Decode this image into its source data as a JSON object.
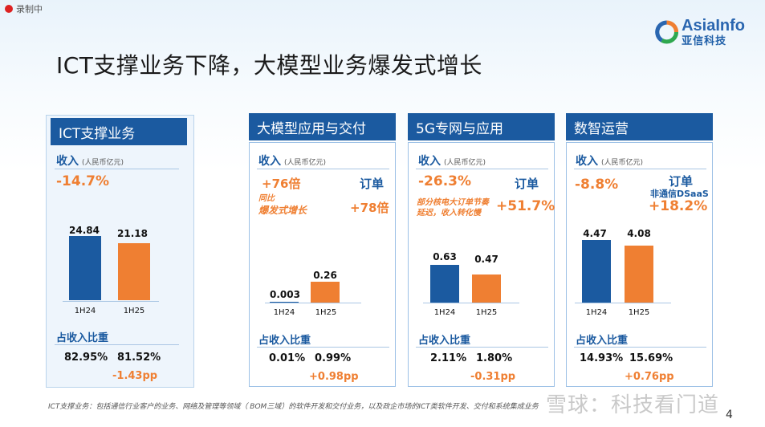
{
  "recording": "录制中",
  "logo": {
    "en": "AsiaInfo",
    "cn": "亚信科技"
  },
  "title": "ICT支撑业务下降，大模型业务爆发式增长",
  "rev_label": "收入",
  "unit": "(人民币亿元)",
  "share_label": "占收入比重",
  "order_label": "订单",
  "x_labels": [
    "1H24",
    "1H25"
  ],
  "panels": {
    "ict": {
      "header": "ICT支撑业务",
      "change": "-14.7%",
      "values": [
        "24.84",
        "21.18"
      ],
      "shares": [
        "82.95%",
        "81.52%"
      ],
      "pp": "-1.43pp"
    },
    "llm": {
      "header": "大模型应用与交付",
      "change": "+76倍",
      "note1": "同比",
      "note2": "爆发式增长",
      "order_change": "+78倍",
      "values": [
        "0.003",
        "0.26"
      ],
      "shares": [
        "0.01%",
        "0.99%"
      ],
      "pp": "+0.98pp"
    },
    "g5": {
      "header": "5G专网与应用",
      "change": "-26.3%",
      "note1": "部分核电大订单节奏",
      "note2": "延迟，收入转化慢",
      "order_change": "+51.7%",
      "values": [
        "0.63",
        "0.47"
      ],
      "shares": [
        "2.11%",
        "1.80%"
      ],
      "pp": "-0.31pp"
    },
    "ops": {
      "header": "数智运营",
      "change": "-8.8%",
      "order_sub": "非通信DSaaS",
      "order_change": "+18.2%",
      "values": [
        "4.47",
        "4.08"
      ],
      "shares": [
        "14.93%",
        "15.69%"
      ],
      "pp": "+0.76pp"
    }
  },
  "footnote": "ICT支撑业务：包括通信行业客户的业务、网络及管理等领域（ BOM三域）的软件开发和交付业务，以及政企市场的ICT类软件开发、交付和系统集成业务",
  "watermark": "雪球：科技看门道",
  "page_number": "4",
  "colors": {
    "blue": "#1b5aa0",
    "orange": "#ef7f32"
  }
}
